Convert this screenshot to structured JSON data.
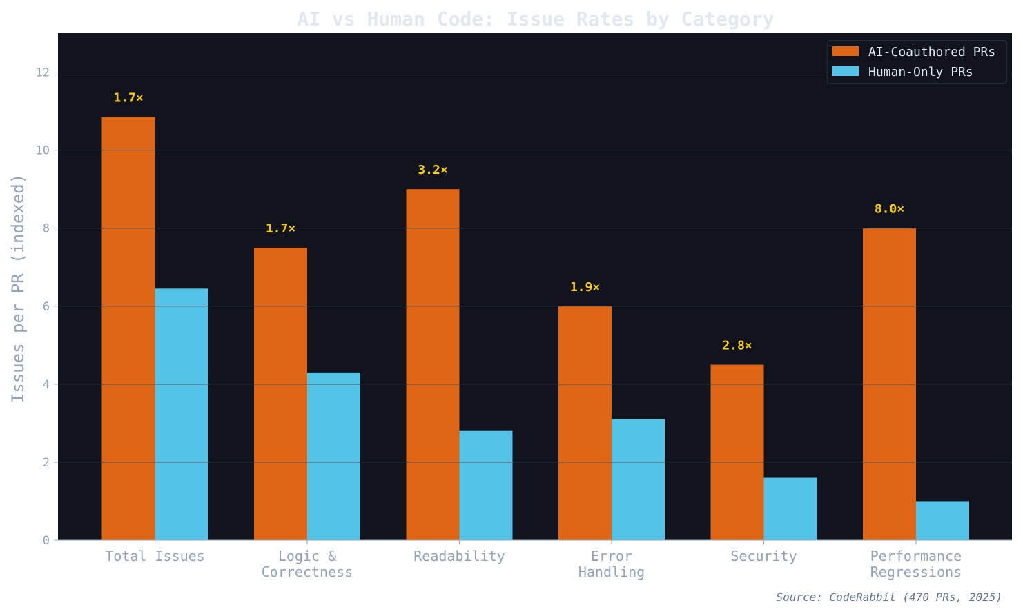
{
  "chart_data": {
    "type": "bar",
    "title": "AI vs Human Code: Issue Rates by Category",
    "ylabel": "Issues per PR (indexed)",
    "xlabel": "",
    "ylim": [
      0,
      13
    ],
    "yticks": [
      0,
      2,
      4,
      6,
      8,
      10,
      12
    ],
    "grid": true,
    "legend_position": "top-right",
    "categories": [
      [
        "Total Issues"
      ],
      [
        "Logic &",
        "Correctness"
      ],
      [
        "Readability"
      ],
      [
        "Error",
        "Handling"
      ],
      [
        "Security"
      ],
      [
        "Performance",
        "Regressions"
      ]
    ],
    "series": [
      {
        "name": "AI-Coauthored PRs",
        "color": "#e06616",
        "values": [
          10.85,
          7.5,
          9.0,
          6.0,
          4.5,
          8.0
        ]
      },
      {
        "name": "Human-Only PRs",
        "color": "#54c3e8",
        "values": [
          6.45,
          4.3,
          2.8,
          3.1,
          1.6,
          1.0
        ]
      }
    ],
    "ratio_labels": [
      "1.7×",
      "1.7×",
      "3.2×",
      "1.9×",
      "2.8×",
      "8.0×"
    ],
    "source": "Source: CodeRabbit (470 PRs, 2025)",
    "colors": {
      "plot_bg": "#11141c",
      "ratio": "#facc15"
    }
  }
}
